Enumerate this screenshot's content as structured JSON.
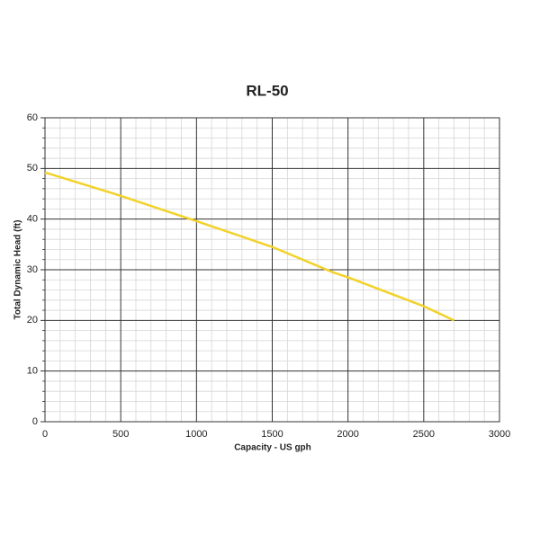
{
  "chart_data": {
    "type": "line",
    "title": "RL-50",
    "xlabel": "Capacity - US gph",
    "ylabel": "Total Dynamic Head (ft)",
    "x": [
      0,
      500,
      1000,
      1500,
      1900,
      2000,
      2500,
      2700
    ],
    "series": [
      {
        "name": "RL-50",
        "color": "#f2d22a",
        "values": [
          49.2,
          44.6,
          39.6,
          34.5,
          29.5,
          28.5,
          22.8,
          20
        ]
      }
    ],
    "xlim": [
      0,
      3000
    ],
    "xticks": [
      0,
      500,
      1000,
      1500,
      2000,
      2500,
      3000
    ],
    "ylim": [
      0,
      60
    ],
    "yticks": [
      0,
      10,
      20,
      30,
      40,
      50,
      60
    ],
    "grid": true,
    "minor_divisions": 5
  }
}
